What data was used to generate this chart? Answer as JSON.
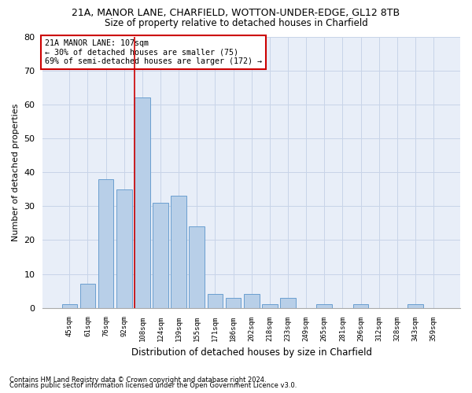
{
  "title1": "21A, MANOR LANE, CHARFIELD, WOTTON-UNDER-EDGE, GL12 8TB",
  "title2": "Size of property relative to detached houses in Charfield",
  "xlabel": "Distribution of detached houses by size in Charfield",
  "ylabel": "Number of detached properties",
  "categories": [
    "45sqm",
    "61sqm",
    "76sqm",
    "92sqm",
    "108sqm",
    "124sqm",
    "139sqm",
    "155sqm",
    "171sqm",
    "186sqm",
    "202sqm",
    "218sqm",
    "233sqm",
    "249sqm",
    "265sqm",
    "281sqm",
    "296sqm",
    "312sqm",
    "328sqm",
    "343sqm",
    "359sqm"
  ],
  "values": [
    1,
    7,
    38,
    35,
    62,
    31,
    33,
    24,
    4,
    3,
    4,
    1,
    3,
    0,
    1,
    0,
    1,
    0,
    0,
    1,
    0
  ],
  "bar_color": "#b8cfe8",
  "bar_edge_color": "#6a9fd0",
  "grid_color": "#c8d4e8",
  "background_color": "#e8eef8",
  "vline_index": 4,
  "vline_color": "#cc0000",
  "annotation_text": "21A MANOR LANE: 107sqm\n← 30% of detached houses are smaller (75)\n69% of semi-detached houses are larger (172) →",
  "annotation_box_color": "#cc0000",
  "ylim": [
    0,
    80
  ],
  "yticks": [
    0,
    10,
    20,
    30,
    40,
    50,
    60,
    70,
    80
  ],
  "footnote1": "Contains HM Land Registry data © Crown copyright and database right 2024.",
  "footnote2": "Contains public sector information licensed under the Open Government Licence v3.0."
}
